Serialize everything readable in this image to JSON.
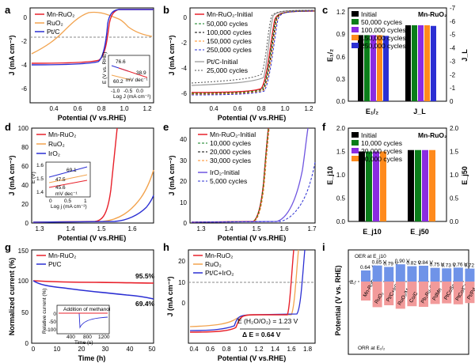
{
  "panels": {
    "a": {
      "label": "a"
    },
    "b": {
      "label": "b"
    },
    "c": {
      "label": "c"
    },
    "d": {
      "label": "d"
    },
    "e": {
      "label": "e"
    },
    "f": {
      "label": "f"
    },
    "g": {
      "label": "g"
    },
    "h": {
      "label": "h"
    },
    "i": {
      "label": "i"
    }
  },
  "colors": {
    "red": "#e8212b",
    "orange": "#f2a34e",
    "blue": "#2b2fd3",
    "gray": "#9a9a9a",
    "black": "#000000",
    "green": "#0a7d1a",
    "purple": "#8a2be2",
    "orange2": "#ff8a1c",
    "lightblue": "#6f93e8",
    "pink": "#f29a9a"
  },
  "chart_data": [
    {
      "panel": "a",
      "type": "line",
      "title": "",
      "xlabel": "Potential (V vs.RHE)",
      "ylabel": "J (mA cm⁻²)",
      "xlim": [
        0.2,
        1.25
      ],
      "ylim": [
        -7,
        1
      ],
      "xticks": [
        "0.4",
        "0.6",
        "0.8",
        "1.0",
        "1.2"
      ],
      "yticks": [
        "0",
        "-2",
        "-4",
        "-6"
      ],
      "series": [
        {
          "name": "Mn-RuO₂"
        },
        {
          "name": "RuO₂"
        },
        {
          "name": "Pt/C"
        }
      ],
      "inset": {
        "xlabel": "Log J (mA cm⁻²)",
        "ylabel": "E (V vs. RHE)",
        "xticks": [
          "-1.0",
          "-0.5",
          "0.0"
        ],
        "values": [
          "76.6",
          "38.9",
          "60.2"
        ],
        "unit": "mV dec⁻¹"
      }
    },
    {
      "panel": "b",
      "type": "line",
      "xlabel": "Potential (V vs.RHE)",
      "ylabel": "J (mA cm⁻²)",
      "xlim": [
        0.2,
        1.25
      ],
      "ylim": [
        -6.5,
        1
      ],
      "xticks": [
        "0.4",
        "0.6",
        "0.8",
        "1.0",
        "1.2"
      ],
      "yticks": [
        "0",
        "-2",
        "-4",
        "-6"
      ],
      "series": [
        {
          "name": "Mn-RuO₂-Initial"
        },
        {
          "name": "50,000 cycles"
        },
        {
          "name": "100,000 cycles"
        },
        {
          "name": "150,000 cycles"
        },
        {
          "name": "250,000 cycles"
        },
        {
          "name": "Pt/C-Initial"
        },
        {
          "name": "25,000 cycles"
        }
      ]
    },
    {
      "panel": "c",
      "type": "bar",
      "title": "Mn-RuO₂",
      "ylabel_left": "E₁/₂",
      "ylabel_right": "J_L",
      "categories": [
        "E₁/₂",
        "J_L"
      ],
      "yticks_left": [
        "0.0",
        "0.3",
        "0.6",
        "0.9",
        "1.2"
      ],
      "yticks_right": [
        "0",
        "-1",
        "-2",
        "-3",
        "-4",
        "-5",
        "-6",
        "-7"
      ],
      "series": [
        {
          "name": "Initial",
          "values": [
            0.85,
            -5.7
          ]
        },
        {
          "name": "50,000 cycles",
          "values": [
            0.85,
            -5.7
          ]
        },
        {
          "name": "100,000 cycles",
          "values": [
            0.85,
            -5.7
          ]
        },
        {
          "name": "150,000 cycles",
          "values": [
            0.85,
            -5.7
          ]
        },
        {
          "name": "250,000 cycles",
          "values": [
            0.84,
            -5.65
          ]
        }
      ]
    },
    {
      "panel": "d",
      "type": "line",
      "xlabel": "Potential (V vs.RHE)",
      "ylabel": "J (mA cm⁻²)",
      "xlim": [
        1.27,
        1.67
      ],
      "ylim": [
        0,
        100
      ],
      "xticks": [
        "1.3",
        "1.4",
        "1.5",
        "1.6"
      ],
      "yticks": [
        "0",
        "20",
        "40",
        "60",
        "80",
        "100"
      ],
      "series": [
        {
          "name": "Mn-RuO₂"
        },
        {
          "name": "RuO₂"
        },
        {
          "name": "IrO₂"
        }
      ],
      "inset": {
        "xlabel": "Log j (mA cm⁻²)",
        "ylabel": "E (V)",
        "yticks": [
          "1.4",
          "1.5",
          "1.6"
        ],
        "xticks": [
          "0",
          "0.5",
          "1"
        ],
        "values": [
          "69.1",
          "47.5",
          "45.6"
        ],
        "unit": "mV dec⁻¹"
      }
    },
    {
      "panel": "e",
      "type": "line",
      "xlabel": "Potential (V vs.RHE)",
      "ylabel": "J (mA cm⁻²)",
      "xlim": [
        1.25,
        1.7
      ],
      "ylim": [
        0,
        45
      ],
      "xticks": [
        "1.3",
        "1.4",
        "1.5",
        "1.6",
        "1.7"
      ],
      "yticks": [
        "0",
        "10",
        "20",
        "30",
        "40"
      ],
      "series": [
        {
          "name": "Mn-RuO₂-Initial"
        },
        {
          "name": "10,000 cycles"
        },
        {
          "name": "20,000 cycles"
        },
        {
          "name": "30,000 cycles"
        },
        {
          "name": "IrO₂-Initial"
        },
        {
          "name": "5,000 cycles"
        }
      ]
    },
    {
      "panel": "f",
      "type": "bar",
      "title": "Mn-RuO₂",
      "ylabel_left": "E_j10",
      "ylabel_right": "E_j50",
      "categories": [
        "E_j10",
        "E_j50"
      ],
      "yticks_left": [
        "0.0",
        "0.5",
        "1.0",
        "1.5",
        "2.0"
      ],
      "yticks_right": [
        "0.0",
        "0.5",
        "1.0",
        "1.5",
        "2.0"
      ],
      "series": [
        {
          "name": "Initial",
          "values": [
            1.5,
            1.53
          ]
        },
        {
          "name": "10,000 cycles",
          "values": [
            1.5,
            1.53
          ]
        },
        {
          "name": "20,000 cycles",
          "values": [
            1.5,
            1.53
          ]
        },
        {
          "name": "30,000 cycles",
          "values": [
            1.5,
            1.53
          ]
        }
      ]
    },
    {
      "panel": "g",
      "type": "line",
      "xlabel": "Time (h)",
      "ylabel": "Normalized current (%)",
      "xlim": [
        0,
        50
      ],
      "ylim": [
        0,
        150
      ],
      "xticks": [
        "0",
        "10",
        "20",
        "30",
        "40",
        "50"
      ],
      "yticks": [
        "0",
        "50",
        "100",
        "150"
      ],
      "series": [
        {
          "name": "Mn-RuO₂",
          "end_label": "95.5%"
        },
        {
          "name": "Pt/C",
          "end_label": "69.4%"
        }
      ],
      "inset": {
        "title": "Addition of methanol",
        "xlabel": "Time (s)",
        "ylabel": "Relative current (%)",
        "xticks": [
          "400",
          "800",
          "1200"
        ],
        "yticks": [
          "0",
          "-50",
          "-100"
        ]
      }
    },
    {
      "panel": "h",
      "type": "line",
      "xlabel": "Potential (V vs.RHE)",
      "ylabel": "J (mA cm⁻²)",
      "xlim": [
        0.2,
        1.8
      ],
      "ylim": [
        -8,
        22
      ],
      "xticks": [
        "0.4",
        "0.6",
        "0.8",
        "1.0",
        "1.2",
        "1.4",
        "1.6",
        "1.8"
      ],
      "yticks": [
        "20",
        "10",
        "0"
      ],
      "series": [
        {
          "name": "Mn-RuO₂"
        },
        {
          "name": "RuO₂"
        },
        {
          "name": "Pt/C+IrO₂"
        }
      ],
      "annotations": [
        "E (H₂O/O₂) = 1.23 V",
        "Δ E = 0.64 V"
      ]
    },
    {
      "panel": "i",
      "type": "bar",
      "ylabel": "Potential (V vs. RHE)",
      "ylim": [
        0,
        1.8
      ],
      "legend_top": "OER at E_j10",
      "legend_bottom": "ORR at E₁/₂",
      "ref_label": "Eₒ",
      "categories": [
        "Mn-RuO₂",
        "RuO₂",
        "Pt/C+IrO₂",
        "RuO₂/MnO₂",
        "Co/C",
        "Pb₂Ru₂O₇",
        "PdMn",
        "PtCoSe₂",
        "PtCo/CrO₂",
        "Pt/Pd"
      ],
      "values_text": [
        "0.64 V",
        "0.85 V",
        "0.79 V",
        "0.90 V",
        "0.82 V",
        "0.84 V",
        "0.75 V",
        "0.73 V",
        "0.76 V",
        "0.72 V"
      ],
      "deltaE": [
        0.64,
        0.85,
        0.79,
        0.9,
        0.82,
        0.84,
        0.75,
        0.73,
        0.76,
        0.72
      ]
    }
  ]
}
